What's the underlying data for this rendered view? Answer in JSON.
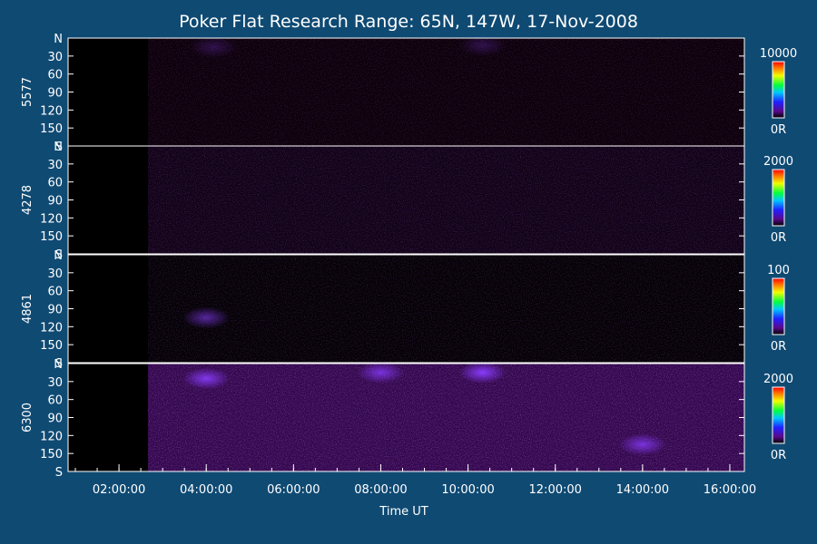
{
  "title": "Poker Flat Research Range: 65N, 147W, 17-Nov-2008",
  "xlabel": "Time UT",
  "colors": {
    "background": "#0f4a73",
    "frame": "#ffffff"
  },
  "chart_data": {
    "type": "heatmap",
    "x_axis": {
      "label": "Time UT",
      "range": [
        "00:50:00",
        "16:20:00"
      ],
      "ticks": [
        "02:00:00",
        "04:00:00",
        "06:00:00",
        "08:00:00",
        "10:00:00",
        "12:00:00",
        "14:00:00",
        "16:00:00"
      ]
    },
    "y_ticks": [
      "N",
      "30",
      "60",
      "90",
      "120",
      "150",
      "S"
    ],
    "y_range": [
      0,
      180
    ],
    "data_start": "02:40:00",
    "panels": [
      {
        "name": "5577",
        "colorbar": {
          "max_label": "10000",
          "min_label": "0R"
        },
        "base_color": "#1a0016",
        "intensity": 0.15,
        "brightspots": [
          {
            "time": "04:10:00",
            "angle": 15,
            "intensity": 0.25
          },
          {
            "time": "10:20:00",
            "angle": 12,
            "intensity": 0.25
          }
        ]
      },
      {
        "name": "4278",
        "colorbar": {
          "max_label": "2000",
          "min_label": "0R"
        },
        "base_color": "#1e0428",
        "intensity": 0.3,
        "brightspots": []
      },
      {
        "name": "4861",
        "colorbar": {
          "max_label": "100",
          "min_label": "0R"
        },
        "base_color": "#050108",
        "intensity": 0.25,
        "brightspots": [
          {
            "time": "04:00:00",
            "angle": 105,
            "intensity": 0.6
          }
        ]
      },
      {
        "name": "6300",
        "colorbar": {
          "max_label": "2000",
          "min_label": "0R"
        },
        "base_color": "#3c0a5a",
        "intensity": 0.75,
        "brightspots": [
          {
            "time": "04:00:00",
            "angle": 25,
            "intensity": 0.9
          },
          {
            "time": "08:00:00",
            "angle": 15,
            "intensity": 0.8
          },
          {
            "time": "10:20:00",
            "angle": 15,
            "intensity": 1.0
          },
          {
            "time": "14:00:00",
            "angle": 135,
            "intensity": 0.8
          }
        ]
      }
    ]
  }
}
